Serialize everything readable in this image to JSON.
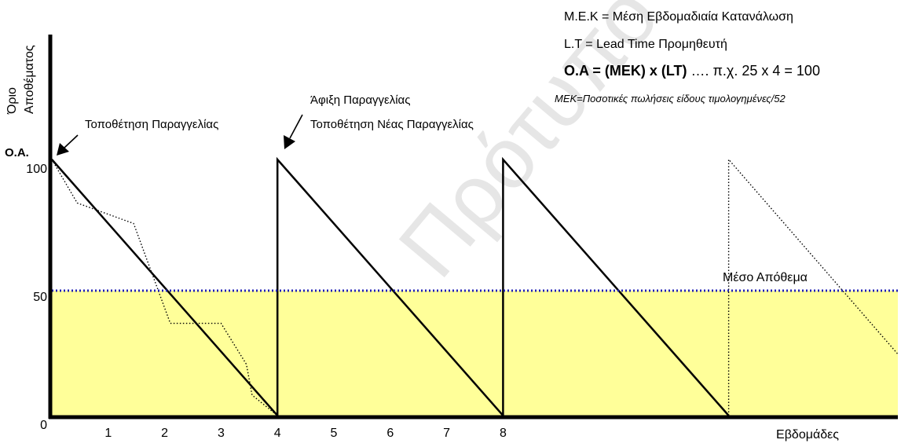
{
  "legend_notes": {
    "mek": "M.E.K = Μέση Εβδομαδιαία Κατανάλωση",
    "lt": "L.T = Lead Time Προμηθευτή",
    "formula_bold": "O.A = (MEK) x (LT)",
    "formula_rest": " …. π.χ. 25 x 4 = 100",
    "mek_def": "MEK=Ποσοτικές πωλήσεις είδους τιμολογημένες/52"
  },
  "annotations": {
    "place_order": "Τοποθέτηση Παραγγελίας",
    "order_arrival": "Άφιξη Παραγγελίας",
    "place_new_order": "Τοποθέτηση Νέας Παραγγελίας",
    "average_stock": "Μέσο Απόθεμα",
    "oa_marker": "O.A."
  },
  "watermark": "Πρότυπο Γ",
  "colors": {
    "average_band": "#ffff99",
    "average_line": "#1f1fb4",
    "axis": "#000000"
  },
  "chart_data": {
    "type": "line",
    "title": "",
    "ylabel_line1": "Όριο",
    "ylabel_line2": "Αποθέματος",
    "xlabel": "Εβδομάδες",
    "xlim": [
      0,
      15
    ],
    "ylim": [
      0,
      100
    ],
    "y_ticks": [
      "100",
      "50",
      "0"
    ],
    "y_tick_values": [
      100,
      50,
      0
    ],
    "x_ticks": [
      "1",
      "2",
      "3",
      "4",
      "5",
      "6",
      "7",
      "8"
    ],
    "x_tick_values": [
      1,
      2,
      3,
      4,
      5,
      6,
      7,
      8
    ],
    "average_stock": 50,
    "series": [
      {
        "style": "solid",
        "x": [
          0,
          4,
          4,
          8,
          8,
          12
        ],
        "y": [
          100,
          0,
          100,
          0,
          100,
          0
        ]
      },
      {
        "style": "dotted",
        "x": [
          0,
          0.45,
          1.45,
          2.1,
          3.0,
          3.45,
          3.55,
          4.0
        ],
        "y": [
          100,
          83,
          75,
          36,
          36,
          20,
          8,
          0
        ]
      },
      {
        "style": "dotted",
        "x": [
          12,
          12,
          15
        ],
        "y": [
          0,
          100,
          24
        ]
      }
    ]
  }
}
